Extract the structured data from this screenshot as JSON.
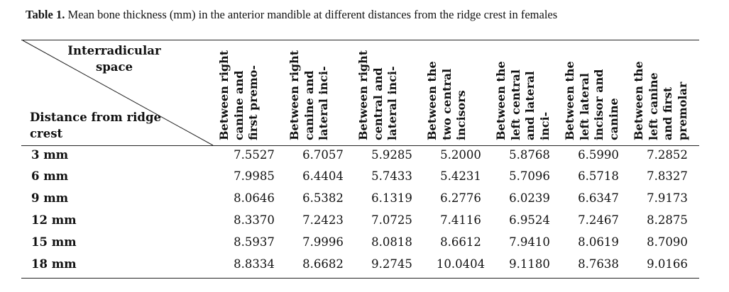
{
  "caption": {
    "label": "Table 1.",
    "text": "Mean bone thickness (mm) in the anterior mandible at different distances from the ridge crest in females"
  },
  "header": {
    "top_left_upper": "Interradicular space",
    "top_left_lower": "Distance from ridge crest"
  },
  "columns": [
    "Between right canine and first premo-",
    "Between right canine and lateral inci-",
    "Between right central and lateral inci-",
    "Between the two central incisors",
    "Between the left central and lateral inci-",
    "Between the left lateral incisor and canine",
    "Between the left canine and first premolar"
  ],
  "rows": [
    {
      "label": "3 mm",
      "values": [
        "7.5527",
        "6.7057",
        "5.9285",
        "5.2000",
        "5.8768",
        "6.5990",
        "7.2852"
      ]
    },
    {
      "label": "6 mm",
      "values": [
        "7.9985",
        "6.4404",
        "5.7433",
        "5.4231",
        "5.7096",
        "6.5718",
        "7.8327"
      ]
    },
    {
      "label": "9 mm",
      "values": [
        "8.0646",
        "6.5382",
        "6.1319",
        "6.2776",
        "6.0239",
        "6.6347",
        "7.9173"
      ]
    },
    {
      "label": "12 mm",
      "values": [
        "8.3370",
        "7.2423",
        "7.0725",
        "7.4116",
        "6.9524",
        "7.2467",
        "8.2875"
      ]
    },
    {
      "label": "15 mm",
      "values": [
        "8.5937",
        "7.9996",
        "8.0818",
        "8.6612",
        "7.9410",
        "8.0619",
        "8.7090"
      ]
    },
    {
      "label": "18 mm",
      "values": [
        "8.8334",
        "8.6682",
        "9.2745",
        "10.0404",
        "9.1180",
        "8.7638",
        "9.0166"
      ]
    }
  ]
}
